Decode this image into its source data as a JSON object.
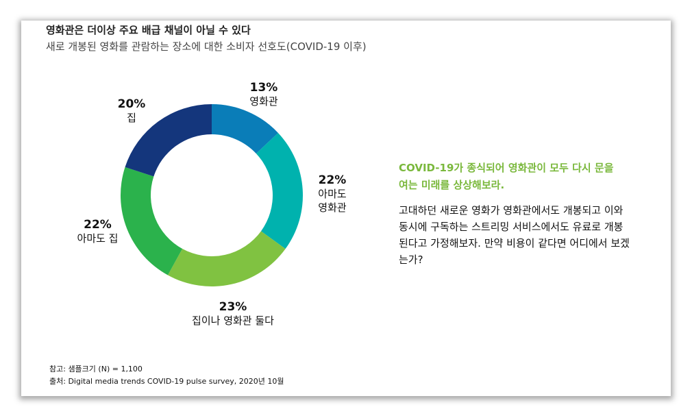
{
  "chart_data": {
    "type": "pie",
    "donut": true,
    "title": "영화관은 더이상 주요 배급 채널이 아닐 수 있다",
    "subtitle": "새로 개봉된 영화를 관람하는 장소에 대한 소비자 선호도(COVID-19 이후)",
    "categories": [
      "영화관",
      "아마도 영화관",
      "집이나 영화관 둘다",
      "아마도 집",
      "집"
    ],
    "values": [
      13,
      22,
      23,
      22,
      20
    ],
    "labels": [
      "13%",
      "22%",
      "23%",
      "22%",
      "20%"
    ],
    "colors": [
      "#0a7db8",
      "#00b2ae",
      "#80c241",
      "#2bb24c",
      "#14367c"
    ]
  },
  "callout": {
    "headline": "COVID-19가 종식되어 영화관이 모두 다시 문을 여는 미래를 상상해보라.",
    "body": "고대하던 새로운 영화가 영화관에서도 개봉되고 이와 동시에 구독하는 스트리밍 서비스에서도 유료로 개봉된다고 가정해보자. 만약 비용이 같다면 어디에서 보겠는가?"
  },
  "footer": {
    "note": "참고: 샘플크기 (N) = 1,100",
    "source": "출처: Digital media trends COVID-19 pulse survey, 2020년 10월"
  }
}
